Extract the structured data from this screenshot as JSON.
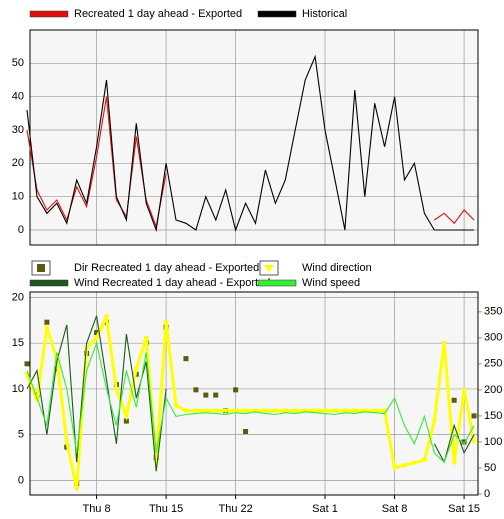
{
  "chart_data": [
    {
      "type": "line",
      "x": [
        0,
        1,
        2,
        3,
        4,
        5,
        6,
        7,
        8,
        9,
        10,
        11,
        12,
        13,
        14,
        15,
        16,
        17,
        18,
        19,
        20,
        21,
        22,
        23,
        24,
        25,
        26,
        27,
        28,
        29,
        30,
        31,
        32,
        33,
        34,
        35,
        36,
        37,
        38,
        39,
        40,
        41,
        42,
        43,
        44,
        45
      ],
      "xlim": [
        0.3,
        45.4
      ],
      "ylim": [
        -4.5,
        60
      ],
      "yticks": [
        0,
        10,
        20,
        30,
        40,
        50
      ],
      "grid": true,
      "series": [
        {
          "name": "Recreated 1 day ahead - Exported",
          "color": "#e01010",
          "mark": "line",
          "values": [
            30,
            12,
            6,
            9,
            3,
            13,
            7,
            22,
            40,
            9,
            4,
            28,
            9,
            1,
            17,
            null,
            null,
            null,
            null,
            null,
            null,
            null,
            null,
            null,
            null,
            null,
            null,
            null,
            null,
            null,
            null,
            null,
            null,
            null,
            null,
            null,
            null,
            null,
            null,
            null,
            null,
            3,
            5,
            2,
            6,
            3
          ]
        },
        {
          "name": "Historical",
          "color": "#000000",
          "mark": "line",
          "values": [
            36,
            10,
            5,
            8,
            2,
            15,
            8,
            25,
            45,
            10,
            3,
            32,
            8,
            0,
            20,
            3,
            2,
            0,
            10,
            3,
            12,
            0,
            8,
            2,
            18,
            8,
            15,
            30,
            45,
            52,
            30,
            15,
            0,
            42,
            10,
            38,
            25,
            40,
            15,
            20,
            5,
            0,
            0,
            0,
            0,
            0
          ]
        }
      ]
    },
    {
      "type": "line",
      "x": [
        0,
        1,
        2,
        3,
        4,
        5,
        6,
        7,
        8,
        9,
        10,
        11,
        12,
        13,
        14,
        15,
        16,
        17,
        18,
        19,
        20,
        21,
        22,
        23,
        24,
        25,
        26,
        27,
        28,
        29,
        30,
        31,
        32,
        33,
        34,
        35,
        36,
        37,
        38,
        39,
        40,
        41,
        42,
        43,
        44,
        45
      ],
      "xlim": [
        0.3,
        45.4
      ],
      "xticks": [
        {
          "value": 7,
          "label": "Thu 8"
        },
        {
          "value": 14,
          "label": "Thu 15"
        },
        {
          "value": 21,
          "label": "Thu 22"
        },
        {
          "value": 30,
          "label": "Sat 1"
        },
        {
          "value": 37,
          "label": "Sat 8"
        },
        {
          "value": 44,
          "label": "Sat 15"
        }
      ],
      "ylim": [
        -1.6,
        20.6
      ],
      "yticks": [
        0,
        5,
        10,
        15,
        20
      ],
      "y2lim": [
        -2,
        388
      ],
      "y2ticks": [
        0,
        50,
        100,
        150,
        200,
        250,
        300,
        350
      ],
      "grid": true,
      "series": [
        {
          "name": "Dir Recreated 1 day ahead - Exported",
          "color": "#5a5a10",
          "mark": "square",
          "axis": "y2",
          "values": [
            250,
            190,
            330,
            240,
            90,
            20,
            270,
            310,
            330,
            210,
            140,
            230,
            290,
            70,
            320,
            null,
            260,
            200,
            190,
            190,
            160,
            200,
            120,
            null,
            null,
            null,
            null,
            null,
            null,
            null,
            null,
            null,
            null,
            null,
            null,
            null,
            null,
            null,
            null,
            null,
            null,
            null,
            null,
            180,
            100,
            150
          ]
        },
        {
          "name": "Wind direction",
          "color": "#ffff00",
          "mark": "triangle",
          "axis": "y2",
          "values": [
            230,
            180,
            320,
            260,
            100,
            10,
            280,
            300,
            340,
            200,
            150,
            240,
            300,
            60,
            330,
            170,
            160,
            160,
            160,
            160,
            160,
            160,
            160,
            160,
            160,
            160,
            160,
            160,
            160,
            160,
            160,
            160,
            160,
            160,
            160,
            160,
            160,
            50,
            55,
            60,
            65,
            140,
            290,
            60,
            200,
            100
          ]
        },
        {
          "name": "Wind Recreated 1 day ahead - Exported",
          "color": "#1a5a1a",
          "mark": "line",
          "values": [
            10,
            12,
            5,
            13,
            17,
            2,
            15,
            18,
            11,
            4,
            16,
            9,
            13,
            1,
            10,
            null,
            null,
            null,
            null,
            null,
            null,
            null,
            null,
            null,
            null,
            null,
            null,
            null,
            null,
            null,
            null,
            null,
            null,
            null,
            null,
            null,
            null,
            null,
            null,
            null,
            null,
            4,
            2,
            6,
            3,
            5
          ]
        },
        {
          "name": "Wind speed",
          "color": "#33ee33",
          "mark": "line",
          "values": [
            12,
            9,
            6,
            14,
            10,
            3,
            12,
            15,
            10,
            6,
            12,
            8,
            14,
            3,
            9,
            7,
            7.2,
            7.3,
            7.4,
            7.3,
            7.2,
            7.4,
            7.3,
            7.5,
            7.3,
            7.2,
            7.4,
            7.3,
            7.5,
            7.4,
            7.3,
            7.2,
            7.4,
            7.3,
            7.5,
            7.4,
            7.3,
            9,
            6,
            4,
            7,
            3,
            2,
            5,
            4,
            6
          ]
        }
      ]
    }
  ]
}
